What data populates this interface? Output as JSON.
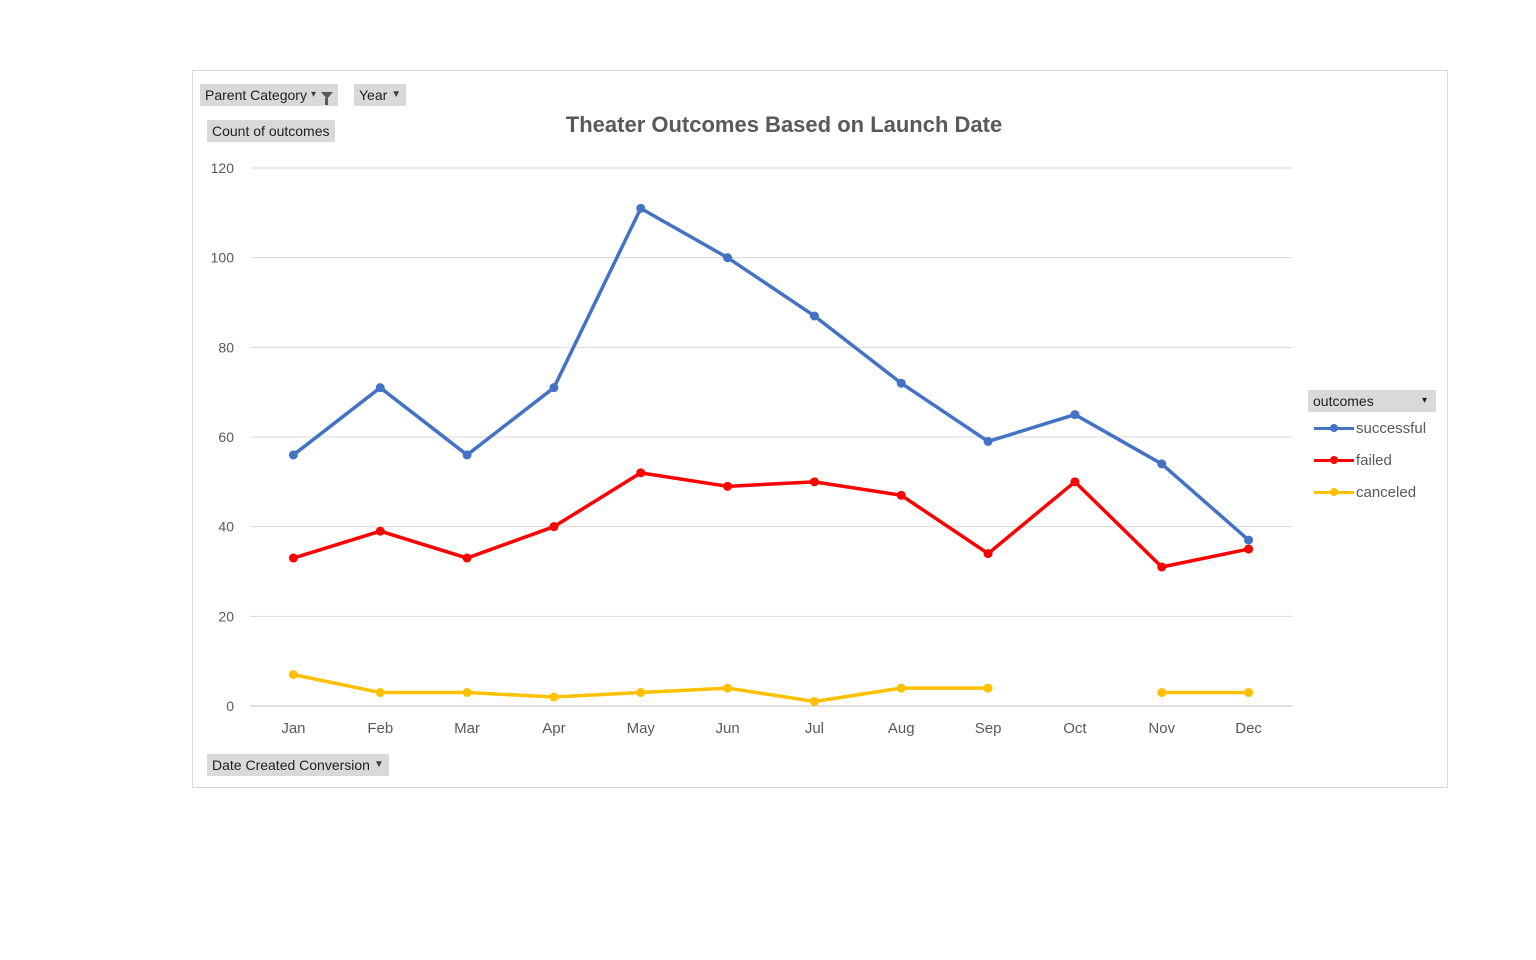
{
  "filters": {
    "parent_category": "Parent Category",
    "year": "Year",
    "count_of_outcomes": "Count of outcomes",
    "date_created": "Date Created Conversion"
  },
  "legend": {
    "header": "outcomes"
  },
  "chart_data": {
    "type": "line",
    "title": "Theater Outcomes Based on Launch Date",
    "xlabel": "",
    "ylabel": "",
    "ylim": [
      0,
      120
    ],
    "yticks": [
      0,
      20,
      40,
      60,
      80,
      100,
      120
    ],
    "grid": true,
    "legend_position": "right",
    "categories": [
      "Jan",
      "Feb",
      "Mar",
      "Apr",
      "May",
      "Jun",
      "Jul",
      "Aug",
      "Sep",
      "Oct",
      "Nov",
      "Dec"
    ],
    "series": [
      {
        "name": "successful",
        "color": "#4472c4",
        "values": [
          56,
          71,
          56,
          71,
          111,
          100,
          87,
          72,
          59,
          65,
          54,
          37
        ]
      },
      {
        "name": "failed",
        "color": "#ff0000",
        "values": [
          33,
          39,
          33,
          40,
          52,
          49,
          50,
          47,
          34,
          50,
          31,
          35
        ]
      },
      {
        "name": "canceled",
        "color": "#ffc000",
        "values": [
          7,
          3,
          3,
          2,
          3,
          4,
          1,
          4,
          4,
          null,
          3,
          3
        ]
      }
    ]
  }
}
